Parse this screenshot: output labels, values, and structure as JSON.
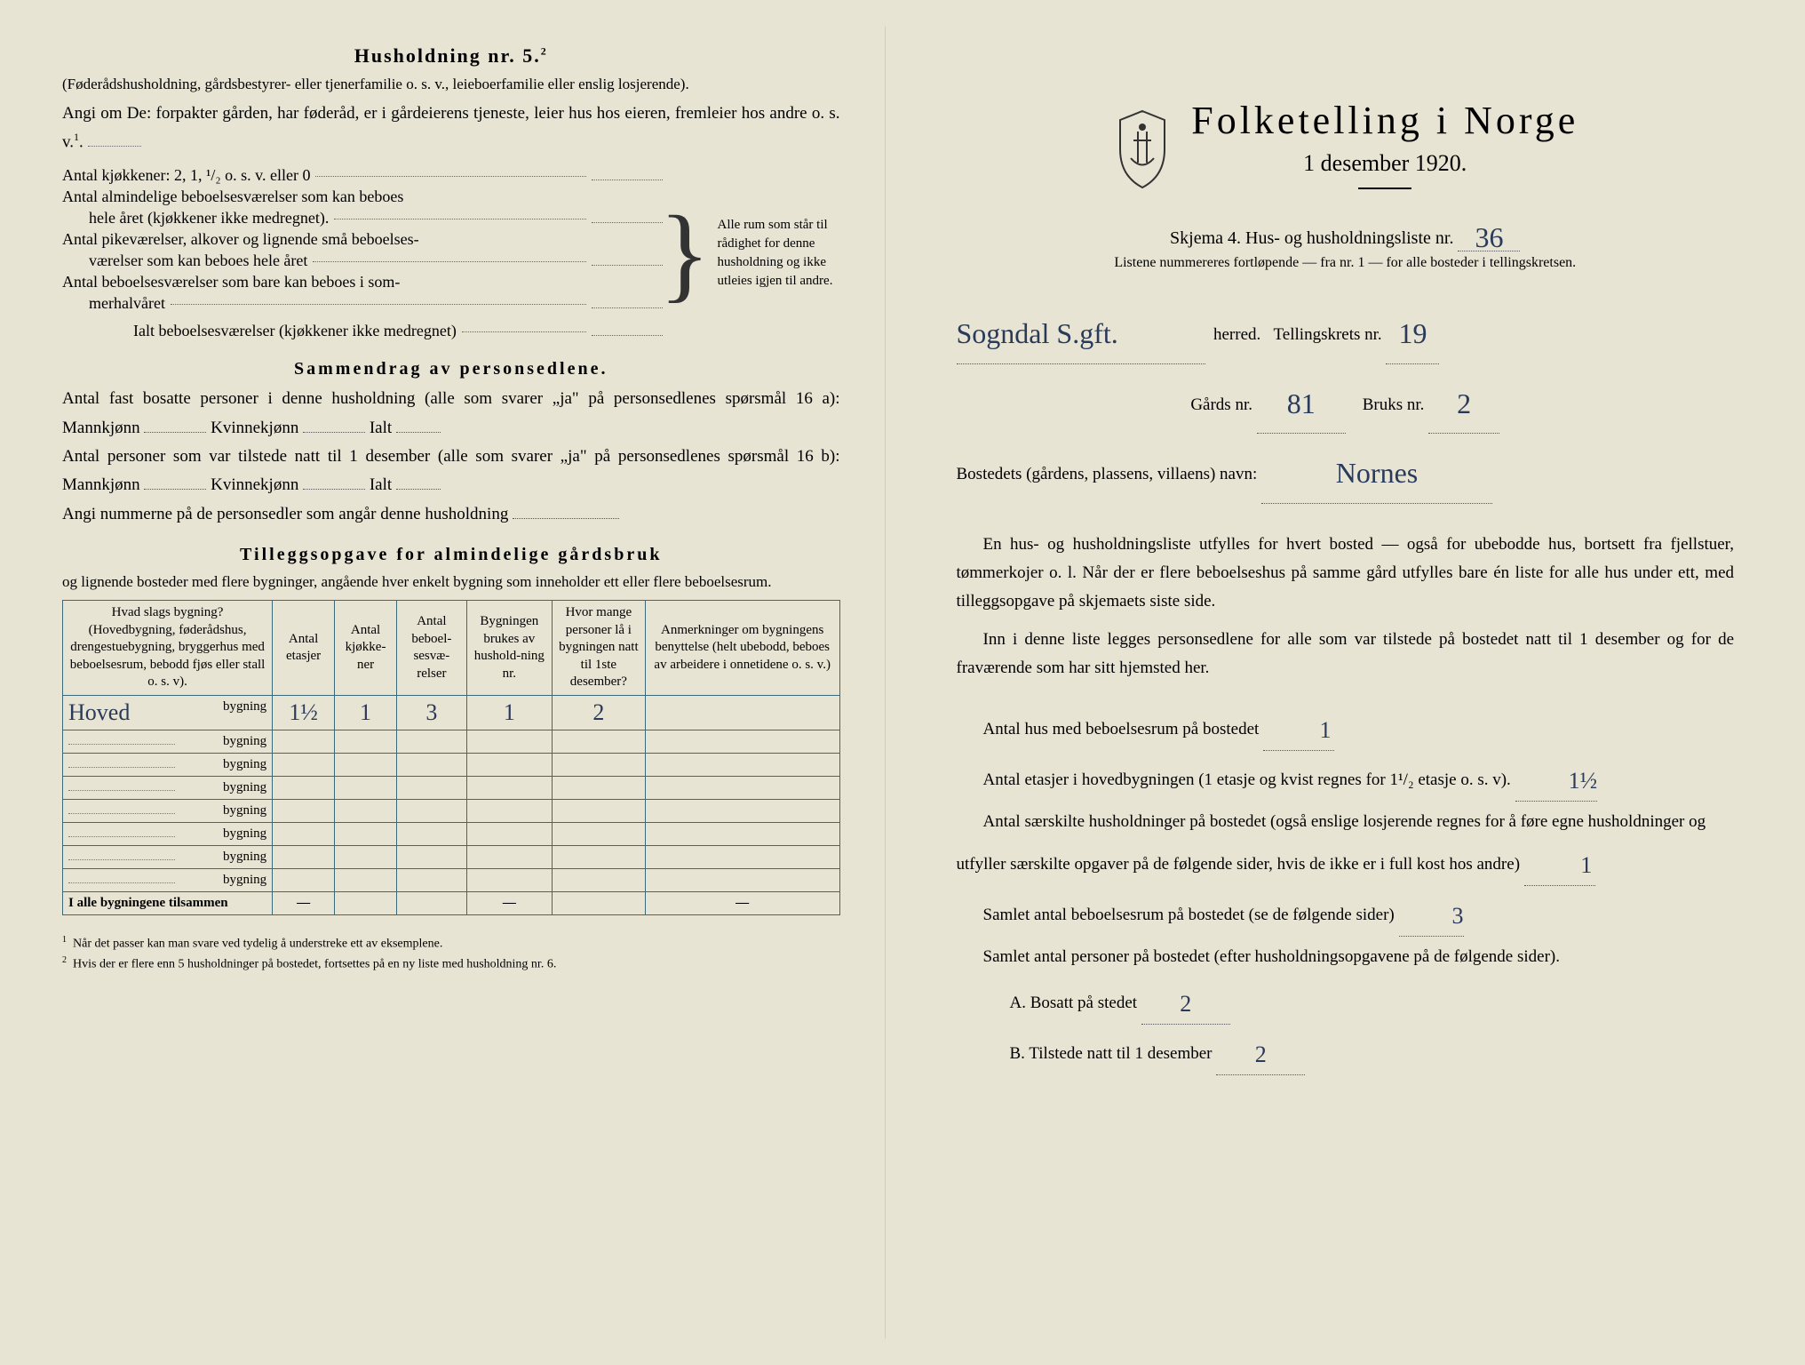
{
  "left": {
    "heading": "Husholdning nr. 5.",
    "heading_sup": "2",
    "intro1": "(Føderådshusholdning, gårdsbestyrer- eller tjenerfamilie o. s. v., leieboerfamilie eller enslig losjerende).",
    "intro2": "Angi om De:  forpakter gården, har føderåd, er i gårdeierens tjeneste, leier hus hos eieren, fremleier hos andre o. s. v.",
    "intro2_sup": "1",
    "rows": {
      "r1": "Antal kjøkkener: 2, 1, ¹/₂ o. s. v. eller 0",
      "r2a": "Antal almindelige beboelsesværelser som kan beboes",
      "r2b": "hele året (kjøkkener ikke medregnet).",
      "r3a": "Antal pikeværelser, alkover og lignende små beboelses-",
      "r3b": "værelser som kan beboes hele året",
      "r4a": "Antal beboelsesværelser som bare kan beboes i som-",
      "r4b": "merhalvåret",
      "r5": "Ialt beboelsesværelser  (kjøkkener ikke medregnet)"
    },
    "brace_note": "Alle rum som står til rådighet for denne husholdning og ikke utleies igjen til andre.",
    "sammendrag_heading": "Sammendrag av personsedlene.",
    "sammendrag1a": "Antal fast bosatte personer i denne husholdning (alle som svarer „ja\" på personsedlenes spørsmål 16 a): Mannkjønn",
    "sammendrag1b": "Kvinnekjønn",
    "sammendrag1c": "Ialt",
    "sammendrag2a": "Antal personer som var tilstede natt til 1 desember (alle som svarer „ja\" på personsedlenes spørsmål 16 b): Mannkjønn",
    "sammendrag2b": "Kvinnekjønn",
    "sammendrag2c": "Ialt",
    "sammendrag3": "Angi nummerne på de personsedler som angår denne husholdning",
    "tillegg_heading": "Tilleggsopgave for almindelige gårdsbruk",
    "tillegg_sub": "og lignende bosteder med flere bygninger, angående hver enkelt bygning som inneholder ett eller flere beboelsesrum.",
    "table": {
      "columns": [
        "Hvad slags bygning?\n(Hovedbygning, føderådshus, drengestuebygning, bryggerhus med beboelsesrum, bebodd fjøs eller stall o. s. v).",
        "Antal etasjer",
        "Antal kjøkke-ner",
        "Antal beboel-sesvæ-relser",
        "Bygningen brukes av hushold-ning nr.",
        "Hvor mange personer lå i bygningen natt til 1ste desember?",
        "Anmerkninger om bygningens benyttelse (helt ubebodd, beboes av arbeidere i onnetidene o. s. v.)"
      ],
      "name_prefix": "Hoved",
      "row_suffix": "bygning",
      "data_row": [
        "1½",
        "1",
        "3",
        "1",
        "2",
        ""
      ],
      "footer_label": "I alle bygningene tilsammen",
      "footer_cells": [
        "—",
        "",
        "",
        "—",
        "",
        "—"
      ]
    },
    "footnote1": "Når det passer kan man svare ved tydelig å understreke ett av eksemplene.",
    "footnote2": "Hvis der er flere enn 5 husholdninger på bostedet, fortsettes på en ny liste med husholdning nr. 6."
  },
  "right": {
    "title": "Folketelling i Norge",
    "subtitle": "1 desember 1920.",
    "skjema_a": "Skjema 4.  Hus- og husholdningsliste nr.",
    "skjema_nr": "36",
    "liste_note": "Listene nummereres fortløpende — fra nr. 1 — for alle bosteder i tellingskretsen.",
    "herred_value": "Sogndal S.gft.",
    "herred_label": "herred.",
    "tellingskrets_label": "Tellingskrets nr.",
    "tellingskrets_value": "19",
    "gards_label": "Gårds nr.",
    "gards_value": "81",
    "bruks_label": "Bruks nr.",
    "bruks_value": "2",
    "bosted_label": "Bostedets (gårdens, plassens, villaens) navn:",
    "bosted_value": "Nornes",
    "para1": "En hus- og husholdningsliste utfylles for hvert bosted — også for ubebodde hus, bortsett fra fjellstuer, tømmerkojer o. l.  Når der er flere beboelseshus på samme gård utfylles bare én liste for alle hus under ett, med tilleggsopgave på skjemaets siste side.",
    "para2": "Inn i denne liste legges personsedlene for alle som var tilstede på bostedet natt til 1 desember og for de fraværende som har sitt hjemsted her.",
    "q1_label": "Antal hus med beboelsesrum på bostedet",
    "q1_value": "1",
    "q2_label_a": "Antal etasjer i hovedbygningen (1 etasje og kvist regnes for 1¹/₂ etasje o. s. v).",
    "q2_value": "1½",
    "q3_label": "Antal særskilte husholdninger på bostedet (også enslige losjerende regnes for å føre egne husholdninger og utfyller særskilte opgaver på de følgende sider, hvis de ikke er i full kost hos andre)",
    "q3_value": "1",
    "q4_label": "Samlet antal beboelsesrum på bostedet (se de følgende sider)",
    "q4_value": "3",
    "q5_label": "Samlet antal personer på bostedet (efter husholdningsopgavene på de følgende sider).",
    "qA_label": "A.  Bosatt på stedet",
    "qA_value": "2",
    "qB_label": "B.  Tilstede natt til 1 desember",
    "qB_value": "2"
  }
}
